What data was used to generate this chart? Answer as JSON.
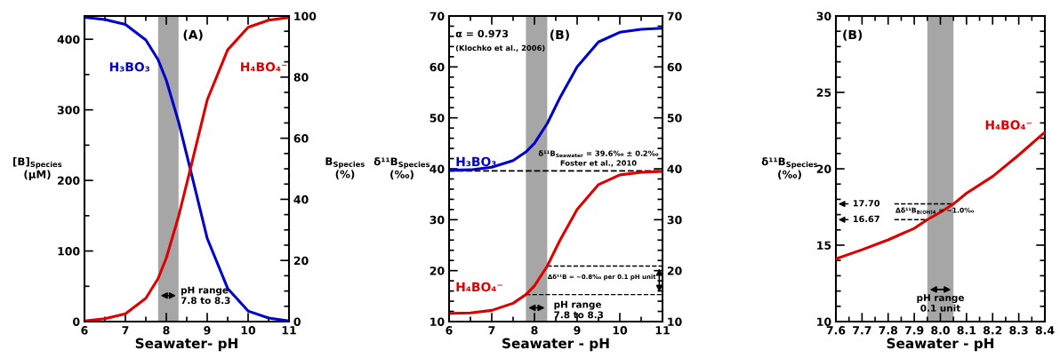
{
  "chart_data": [
    {
      "type": "line",
      "xlabel": "Seawater- pH",
      "ylabel": "[B]$_{Species}$\n(µM)",
      "y2label": "B$_{Species}$\n(%)",
      "x": [
        6,
        6.5,
        7,
        7.5,
        7.8,
        8.0,
        8.3,
        8.6,
        9,
        9.5,
        10,
        10.5,
        11
      ],
      "series": [
        {
          "name": "H₃BO₃",
          "color": "#0000cc",
          "values": [
            431,
            428,
            421,
            399,
            371,
            342,
            283,
            213,
            118,
            47,
            15,
            5,
            1
          ]
        },
        {
          "name": "H₄BO₄⁻",
          "color": "#dd0000",
          "values": [
            1,
            4,
            11,
            33,
            61,
            90,
            149,
            219,
            314,
            385,
            417,
            427,
            431
          ]
        }
      ],
      "xlim": [
        6,
        11
      ],
      "xticks": [
        6,
        7,
        8,
        9,
        10,
        11
      ],
      "ylim": [
        0,
        433
      ],
      "yticks": [
        0,
        100,
        200,
        300,
        400
      ],
      "y2lim": [
        0,
        100
      ],
      "y2ticks": [
        0,
        20,
        40,
        60,
        80,
        100
      ],
      "bands": [
        {
          "axis": "x",
          "from": 7.8,
          "to": 8.3,
          "color": "#a6a6a6"
        }
      ],
      "annotations": [
        "(A)",
        "pH range\n7.8 to 8.3"
      ],
      "grid": false,
      "legend": false,
      "marker": "none",
      "line_style": "solid"
    },
    {
      "type": "line",
      "xlabel": "Seawater - pH",
      "ylabel": "δ¹¹B$_{Species}$\n(‰)",
      "x": [
        6,
        6.5,
        7,
        7.5,
        7.8,
        8.0,
        8.3,
        8.6,
        9,
        9.5,
        10,
        10.5,
        11
      ],
      "series": [
        {
          "name": "H₃BO₃",
          "color": "#0000cc",
          "values": [
            39.7,
            39.8,
            40.3,
            41.6,
            43.3,
            45.0,
            48.9,
            54,
            60,
            64.9,
            66.8,
            67.4,
            67.6
          ]
        },
        {
          "name": "H₄BO₄⁻",
          "color": "#dd0000",
          "values": [
            11.6,
            11.7,
            12.2,
            13.6,
            15.3,
            17.0,
            20.9,
            26,
            32,
            36.9,
            38.8,
            39.3,
            39.5
          ]
        }
      ],
      "xlim": [
        6,
        11
      ],
      "xticks": [
        6,
        7,
        8,
        9,
        10,
        11
      ],
      "ylim": [
        10,
        70
      ],
      "yticks": [
        10,
        20,
        30,
        40,
        50,
        60,
        70
      ],
      "y2lim": [
        10,
        70
      ],
      "y2ticks": [
        10,
        20,
        30,
        40,
        50,
        60,
        70
      ],
      "bands": [
        {
          "axis": "x",
          "from": 7.8,
          "to": 8.3,
          "color": "#a6a6a6"
        }
      ],
      "ref_lines": [
        {
          "axis": "y",
          "value": 39.6,
          "label": "δ¹¹B$_{Seawater}$ = 39.6‰ ± 0.2‰",
          "line_style": "dashed",
          "color": "#000000"
        },
        {
          "axis": "y",
          "value": 20.9,
          "line_style": "dashed",
          "color": "#000000"
        },
        {
          "axis": "y",
          "value": 15.3,
          "line_style": "dashed",
          "color": "#000000"
        }
      ],
      "annotations": [
        "α = 0.973",
        "(Klochko et al., 2006)",
        "(B)",
        "Foster et al., 2010",
        "Δδ¹¹B = ~0.8‰ per 0.1 pH unit",
        "pH range\n7.8 to 8.3"
      ],
      "grid": false,
      "legend": false,
      "marker": "none",
      "line_style": "solid"
    },
    {
      "type": "line",
      "xlabel": "Seawater - pH",
      "ylabel": "δ¹¹B$_{Species}$\n(‰)",
      "x": [
        7.6,
        7.7,
        7.8,
        7.9,
        7.95,
        8.0,
        8.05,
        8.1,
        8.2,
        8.3,
        8.4
      ],
      "series": [
        {
          "name": "H₄BO₄⁻",
          "color": "#dd0000",
          "values": [
            14.1,
            14.7,
            15.35,
            16.1,
            16.67,
            17.15,
            17.7,
            18.4,
            19.5,
            20.9,
            22.4
          ]
        }
      ],
      "xlim": [
        7.6,
        8.4
      ],
      "xticks": [
        7.6,
        7.7,
        7.8,
        7.9,
        {
          "value": 8.0,
          "label": "8.0"
        },
        8.1,
        8.2,
        8.3,
        8.4
      ],
      "ylim": [
        10,
        30
      ],
      "yticks": [
        10,
        15,
        20,
        25,
        30
      ],
      "bands": [
        {
          "axis": "x",
          "from": 7.95,
          "to": 8.05,
          "color": "#a6a6a6"
        }
      ],
      "ref_lines": [
        {
          "axis": "y",
          "value": 17.7,
          "label": "17.70",
          "line_style": "dashed",
          "color": "#000000"
        },
        {
          "axis": "y",
          "value": 16.67,
          "label": "16.67",
          "line_style": "dashed",
          "color": "#000000"
        }
      ],
      "annotations": [
        "(B)",
        "Δδ¹¹B$_{B(OH)4}$ = ~1.0‰",
        "pH range\n0.1 unit"
      ],
      "grid": false,
      "legend": false,
      "marker": "none",
      "line_style": "solid"
    }
  ]
}
